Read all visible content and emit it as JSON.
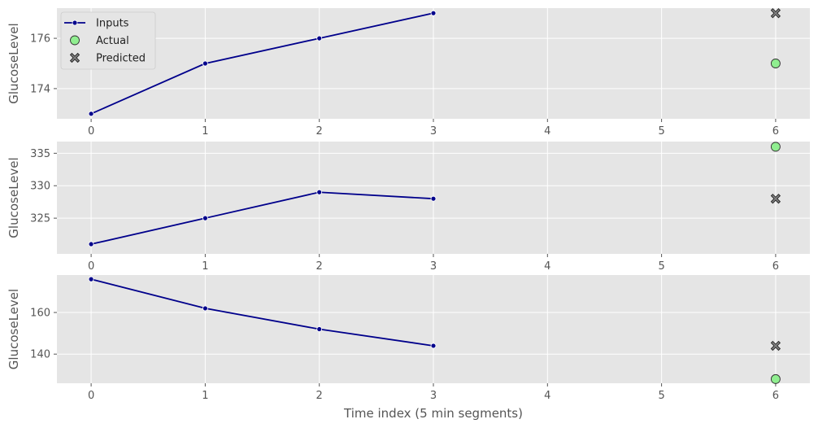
{
  "chart_data": [
    {
      "type": "line",
      "ylabel": "GlucoseLevel",
      "xlabel": "",
      "xlim": [
        -0.3,
        6.3
      ],
      "ylim": [
        172.8,
        177.2
      ],
      "yticks": [
        174,
        176
      ],
      "xticks": [
        0,
        1,
        2,
        3,
        4,
        5,
        6
      ],
      "grid": true,
      "legend": "top-left",
      "series": [
        {
          "name": "Inputs",
          "kind": "line",
          "x": [
            0,
            1,
            2,
            3
          ],
          "y": [
            173,
            175,
            176,
            177
          ]
        },
        {
          "name": "Actual",
          "kind": "scatter",
          "x": [
            6
          ],
          "y": [
            175
          ]
        },
        {
          "name": "Predicted",
          "kind": "scatter",
          "x": [
            6
          ],
          "y": [
            177
          ]
        }
      ]
    },
    {
      "type": "line",
      "ylabel": "GlucoseLevel",
      "xlabel": "",
      "xlim": [
        -0.3,
        6.3
      ],
      "ylim": [
        319.5,
        336.8
      ],
      "yticks": [
        325,
        330,
        335
      ],
      "xticks": [
        0,
        1,
        2,
        3,
        4,
        5,
        6
      ],
      "grid": true,
      "series": [
        {
          "name": "Inputs",
          "kind": "line",
          "x": [
            0,
            1,
            2,
            3
          ],
          "y": [
            321,
            325,
            329,
            328
          ]
        },
        {
          "name": "Actual",
          "kind": "scatter",
          "x": [
            6
          ],
          "y": [
            336
          ]
        },
        {
          "name": "Predicted",
          "kind": "scatter",
          "x": [
            6
          ],
          "y": [
            328
          ]
        }
      ]
    },
    {
      "type": "line",
      "ylabel": "GlucoseLevel",
      "xlabel": "Time index (5 min segments)",
      "xlim": [
        -0.3,
        6.3
      ],
      "ylim": [
        126,
        178
      ],
      "yticks": [
        140,
        160
      ],
      "xticks": [
        0,
        1,
        2,
        3,
        4,
        5,
        6
      ],
      "grid": true,
      "series": [
        {
          "name": "Inputs",
          "kind": "line",
          "x": [
            0,
            1,
            2,
            3
          ],
          "y": [
            176,
            162,
            152,
            144
          ]
        },
        {
          "name": "Actual",
          "kind": "scatter",
          "x": [
            6
          ],
          "y": [
            128
          ]
        },
        {
          "name": "Predicted",
          "kind": "scatter",
          "x": [
            6
          ],
          "y": [
            144
          ]
        }
      ]
    }
  ],
  "colors": {
    "inputs_line": "#00008b",
    "actual_fill": "#90ee90",
    "predicted_fill": "#808080",
    "plot_background": "#e5e5e5",
    "grid": "#ffffff"
  }
}
